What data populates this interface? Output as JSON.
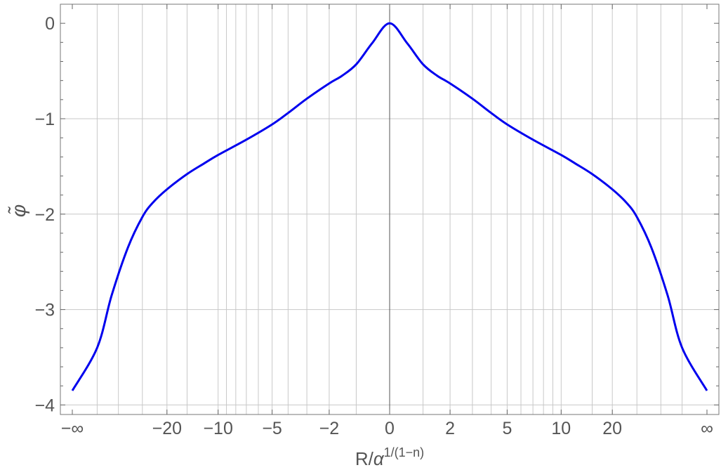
{
  "chart_data": {
    "type": "line",
    "title": "",
    "xlabel": {
      "base": "R/",
      "symbol": "α",
      "exponent": "1/(1−n)"
    },
    "ylabel": "φ̃",
    "x_scale": "compactified symmetric (±∞ at ends)",
    "ylim": [
      -4.1,
      0.2
    ],
    "grid": true,
    "x_tick_labels": [
      "−∞",
      "−20",
      "−10",
      "−5",
      "−2",
      "0",
      "2",
      "5",
      "10",
      "20",
      "∞"
    ],
    "y_tick_labels": [
      "0",
      "−1",
      "−2",
      "−3",
      "−4"
    ],
    "y_ticks": [
      0,
      -1,
      -2,
      -3,
      -4
    ],
    "series": [
      {
        "color": "#0000ee",
        "x": [
          0,
          0.5,
          1,
          1.5,
          2,
          3,
          4,
          5,
          7,
          10,
          12,
          15,
          20,
          25,
          30,
          40,
          60,
          100,
          "∞"
        ],
        "y": [
          0,
          -0.21,
          -0.43,
          -0.55,
          -0.63,
          -0.79,
          -0.94,
          -1.06,
          -1.22,
          -1.38,
          -1.47,
          -1.58,
          -1.74,
          -1.88,
          -2.03,
          -2.35,
          -2.85,
          -3.4,
          -3.85
        ],
        "symmetric": true
      }
    ]
  }
}
